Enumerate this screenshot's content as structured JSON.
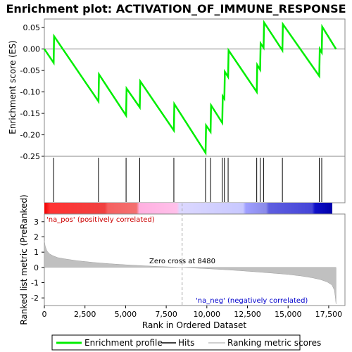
{
  "chart_data": {
    "type": "line",
    "title": "Enrichment plot: ACTIVATION_OF_IMMUNE_RESPONSE",
    "top_panel": {
      "ylabel": "Enrichment score (ES)",
      "ylim": [
        -0.25,
        0.07
      ],
      "yticks": [
        0.05,
        0.0,
        -0.05,
        -0.1,
        -0.15,
        -0.2,
        -0.25
      ],
      "ytick_labels": [
        "0.05",
        "0.00",
        "-0.05",
        "-0.10",
        "-0.15",
        "-0.20",
        "-0.25"
      ],
      "series": [
        {
          "name": "Enrichment profile",
          "color": "#00ee00",
          "x": [
            0,
            570,
            600,
            3330,
            3360,
            5030,
            5060,
            5870,
            5900,
            7970,
            8000,
            9920,
            9950,
            10230,
            10260,
            10950,
            10980,
            11080,
            11110,
            11310,
            11340,
            13070,
            13100,
            13280,
            13310,
            13490,
            13520,
            14650,
            14680,
            16920,
            16950,
            17070,
            17100,
            17950
          ],
          "y": [
            0.0,
            -0.032,
            0.03,
            -0.122,
            -0.059,
            -0.155,
            -0.092,
            -0.136,
            -0.075,
            -0.19,
            -0.128,
            -0.242,
            -0.178,
            -0.193,
            -0.131,
            -0.172,
            -0.11,
            -0.116,
            -0.053,
            -0.065,
            -0.003,
            -0.1,
            -0.037,
            -0.048,
            0.013,
            0.003,
            0.062,
            -0.003,
            0.058,
            -0.063,
            0.0,
            -0.008,
            0.052,
            0.0
          ]
        }
      ]
    },
    "hits": {
      "name": "Hits",
      "positions": [
        570,
        3330,
        5030,
        5870,
        7970,
        9920,
        10230,
        10950,
        11080,
        11310,
        13070,
        13280,
        13490,
        14650,
        16920,
        17070
      ]
    },
    "bottom_panel": {
      "ylabel": "Ranked list metric (PreRanked)",
      "xlabel": "Rank in Ordered Dataset",
      "ylim": [
        -2.5,
        3.5
      ],
      "yticks": [
        3,
        2,
        1,
        0,
        -1,
        -2
      ],
      "ytick_labels": [
        "3",
        "2",
        "1",
        "0",
        "-1",
        "-2"
      ],
      "xlim": [
        0,
        18500
      ],
      "xticks": [
        0,
        2500,
        5000,
        7500,
        10000,
        12500,
        15000,
        17500
      ],
      "xtick_labels": [
        "0",
        "2,500",
        "5,000",
        "7,500",
        "10,000",
        "12,500",
        "15,000",
        "17,500"
      ],
      "series": {
        "name": "Ranking metric scores",
        "color": "#c0c0c0",
        "x": [
          0,
          50,
          150,
          300,
          500,
          800,
          1200,
          2000,
          3000,
          4000,
          5000,
          6000,
          7000,
          8000,
          8480,
          9000,
          10000,
          11000,
          12000,
          13000,
          14000,
          15000,
          15800,
          16500,
          17000,
          17400,
          17700,
          17850,
          17900,
          17950
        ],
        "y": [
          1.75,
          1.4,
          1.1,
          0.9,
          0.78,
          0.65,
          0.57,
          0.44,
          0.33,
          0.24,
          0.17,
          0.11,
          0.06,
          0.02,
          0.0,
          -0.03,
          -0.08,
          -0.14,
          -0.21,
          -0.29,
          -0.37,
          -0.46,
          -0.56,
          -0.68,
          -0.8,
          -0.95,
          -1.15,
          -1.5,
          -1.9,
          -2.4
        ]
      },
      "zero_cross_label": "Zero cross at 8480",
      "zero_cross": 8480,
      "pos_label": "'na_pos' (positively correlated)",
      "neg_label": "'na_neg' (negatively correlated)"
    },
    "legend": {
      "placement": "bottom",
      "entries": [
        "Enrichment profile",
        "Hits",
        "Ranking metric scores"
      ]
    },
    "colors": {
      "profile": "#00ee00",
      "hits": "#000000",
      "metric": "#c0c0c0",
      "pos_label": "#cc0000",
      "neg_label": "#0000cc"
    }
  }
}
